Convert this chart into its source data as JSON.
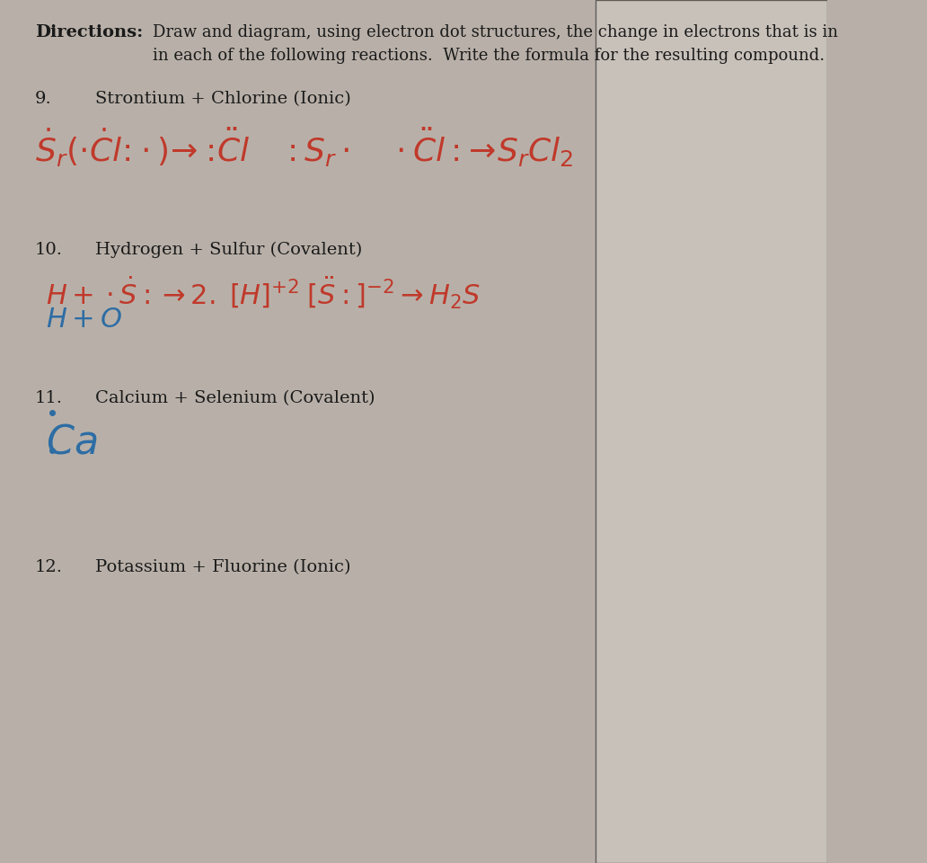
{
  "bg_color": "#b8b0a8",
  "paper_color": "#cdc8c0",
  "right_fade_color": "#d8d4cc",
  "text_color": "#1a1a1a",
  "red_color": "#c0392b",
  "blue_color": "#2e6da4",
  "directions_bold": "Directions:",
  "directions_text1": "Draw and diagram, using electron dot structures, the change in electrons that is in",
  "directions_text2": "in each of the following reactions.  Write the formula for the resulting compound.",
  "q9_num": "9.",
  "q9_title": "Strontium + Chlorine (Ionic)",
  "q10_num": "10.",
  "q10_title": "Hydrogen + Sulfur (Covalent)",
  "q11_num": "11.",
  "q11_title": "Calcium + Selenium (Covalent)",
  "q12_num": "12.",
  "q12_title": "Potassium + Fluorine (Ionic)",
  "figwidth": 10.32,
  "figheight": 9.6,
  "dpi": 100
}
